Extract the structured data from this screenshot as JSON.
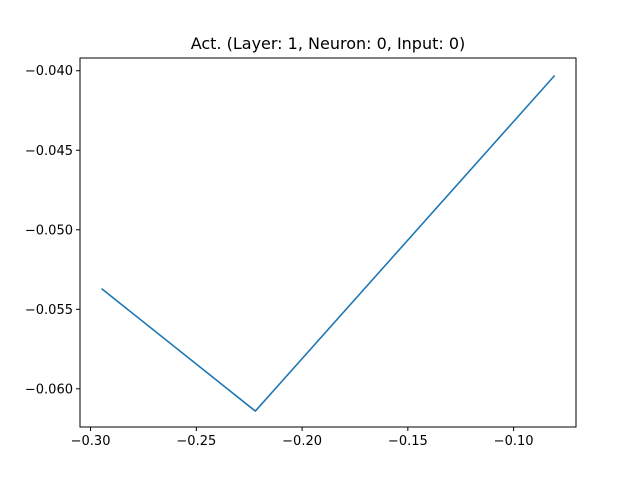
{
  "chart_data": {
    "type": "line",
    "title": "Act. (Layer: 1, Neuron: 0, Input: 0)",
    "xlabel": "",
    "ylabel": "",
    "xlim": [
      -0.305,
      -0.0705
    ],
    "ylim": [
      -0.0624,
      -0.0392
    ],
    "x_ticks": [
      -0.3,
      -0.25,
      -0.2,
      -0.15,
      -0.1
    ],
    "x_tick_labels": [
      "−0.30",
      "−0.25",
      "−0.20",
      "−0.15",
      "−0.10"
    ],
    "y_ticks": [
      -0.04,
      -0.045,
      -0.05,
      -0.055,
      -0.06
    ],
    "y_tick_labels": [
      "−0.040",
      "−0.045",
      "−0.050",
      "−0.055",
      "−0.060"
    ],
    "grid": false,
    "series": [
      {
        "color": "#1f77b4",
        "points": [
          {
            "x": -0.2948,
            "y": -0.0537
          },
          {
            "x": -0.2221,
            "y": -0.0614
          },
          {
            "x": -0.0806,
            "y": -0.0403
          }
        ]
      }
    ]
  }
}
